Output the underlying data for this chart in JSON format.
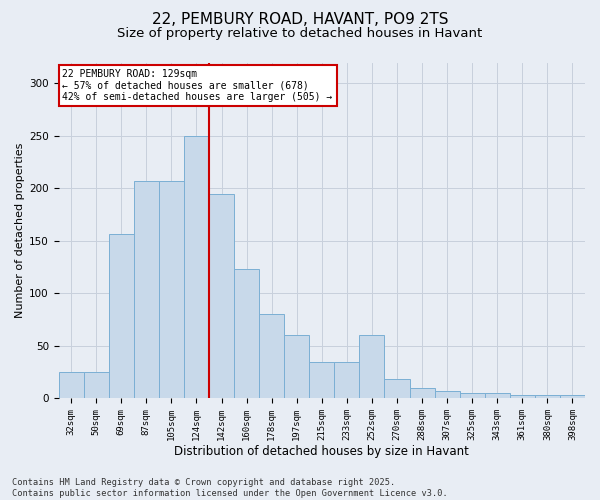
{
  "title1": "22, PEMBURY ROAD, HAVANT, PO9 2TS",
  "title2": "Size of property relative to detached houses in Havant",
  "xlabel": "Distribution of detached houses by size in Havant",
  "ylabel": "Number of detached properties",
  "categories": [
    "32sqm",
    "50sqm",
    "69sqm",
    "87sqm",
    "105sqm",
    "124sqm",
    "142sqm",
    "160sqm",
    "178sqm",
    "197sqm",
    "215sqm",
    "233sqm",
    "252sqm",
    "270sqm",
    "288sqm",
    "307sqm",
    "325sqm",
    "343sqm",
    "361sqm",
    "380sqm",
    "398sqm"
  ],
  "values": [
    25,
    25,
    157,
    207,
    207,
    250,
    195,
    123,
    80,
    60,
    35,
    35,
    60,
    18,
    10,
    7,
    5,
    5,
    3,
    3,
    3
  ],
  "bar_color": "#c8d9ea",
  "bar_edge_color": "#7bafd4",
  "vline_x_index": 5,
  "vline_color": "#cc0000",
  "annotation_text": "22 PEMBURY ROAD: 129sqm\n← 57% of detached houses are smaller (678)\n42% of semi-detached houses are larger (505) →",
  "annotation_box_facecolor": "#ffffff",
  "annotation_box_edgecolor": "#cc0000",
  "ylim": [
    0,
    320
  ],
  "yticks": [
    0,
    50,
    100,
    150,
    200,
    250,
    300
  ],
  "fig_facecolor": "#e8edf4",
  "ax_facecolor": "#e8edf4",
  "grid_color": "#c8d0dc",
  "footer": "Contains HM Land Registry data © Crown copyright and database right 2025.\nContains public sector information licensed under the Open Government Licence v3.0."
}
